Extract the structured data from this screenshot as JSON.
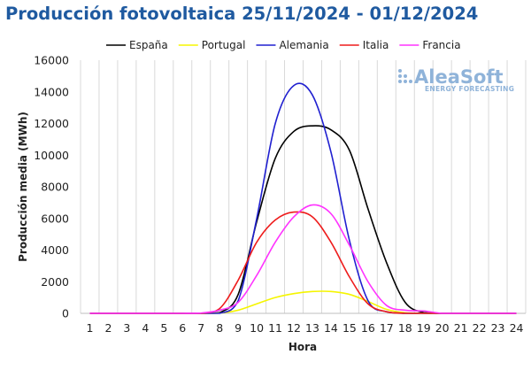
{
  "chart_data": {
    "type": "line",
    "title": "Producción fotovoltaica 25/11/2024 - 01/12/2024",
    "xlabel": "Hora",
    "ylabel": "Producción media (MWh)",
    "x": [
      1,
      2,
      3,
      4,
      5,
      6,
      7,
      8,
      9,
      10,
      11,
      12,
      13,
      14,
      15,
      16,
      17,
      18,
      19,
      20,
      21,
      22,
      23,
      24
    ],
    "ylim": [
      0,
      16000
    ],
    "yticks": [
      0,
      2000,
      4000,
      6000,
      8000,
      10000,
      12000,
      14000,
      16000
    ],
    "grid": "vertical",
    "legend_position": "top",
    "series": [
      {
        "name": "España",
        "color": "#000000",
        "values": [
          0,
          0,
          0,
          0,
          0,
          0,
          0,
          50,
          1200,
          5800,
          9800,
          11500,
          11850,
          11600,
          10300,
          6600,
          3200,
          700,
          50,
          0,
          0,
          0,
          0,
          0
        ]
      },
      {
        "name": "Portugal",
        "color": "#f5f500",
        "values": [
          0,
          0,
          0,
          0,
          0,
          0,
          0,
          20,
          200,
          600,
          1000,
          1250,
          1380,
          1380,
          1200,
          750,
          250,
          40,
          0,
          0,
          0,
          0,
          0,
          0
        ]
      },
      {
        "name": "Alemania",
        "color": "#2020d0",
        "values": [
          0,
          0,
          0,
          0,
          0,
          0,
          0,
          0,
          800,
          6000,
          12000,
          14400,
          13800,
          10200,
          4600,
          800,
          100,
          0,
          0,
          0,
          0,
          0,
          0,
          0
        ]
      },
      {
        "name": "Italia",
        "color": "#ee1c1c",
        "values": [
          0,
          0,
          0,
          0,
          0,
          0,
          0,
          300,
          2100,
          4500,
          5900,
          6400,
          6100,
          4500,
          2300,
          600,
          100,
          0,
          0,
          0,
          0,
          0,
          0,
          0
        ]
      },
      {
        "name": "Francia",
        "color": "#ff33ff",
        "values": [
          0,
          0,
          0,
          0,
          0,
          0,
          20,
          200,
          700,
          2400,
          4500,
          6100,
          6850,
          6300,
          4300,
          2000,
          500,
          200,
          150,
          0,
          0,
          0,
          0,
          0
        ]
      }
    ]
  },
  "logo": {
    "main": "AleaSoft",
    "sub": "ENERGY FORECASTING"
  }
}
